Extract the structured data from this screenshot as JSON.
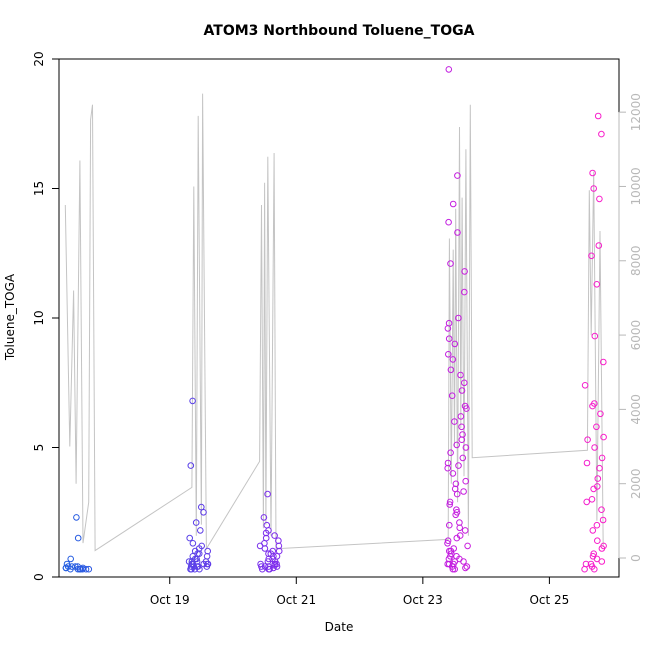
{
  "chart_data": {
    "type": "scatter",
    "title": "ATOM3 Northbound Toluene_TOGA",
    "xlabel": "Date",
    "ylabel": "Toluene_TOGA",
    "x_unit": "days since Oct 17 00:00",
    "xlim": [
      17.25,
      26.1
    ],
    "ylim": [
      0,
      20
    ],
    "x_ticks": [
      19,
      21,
      23,
      25
    ],
    "x_tick_labels": [
      "Oct 19",
      "Oct 21",
      "Oct 23",
      "Oct 25"
    ],
    "y_ticks": [
      0,
      5,
      10,
      15,
      20
    ],
    "y_tick_labels": [
      "0",
      "5",
      "10",
      "15",
      "20"
    ],
    "secondary_axis": {
      "label": "",
      "ylim": [
        0,
        13000
      ],
      "ticks": [
        0,
        2000,
        4000,
        6000,
        8000,
        10000,
        12000
      ],
      "tick_labels": [
        "0",
        "2000",
        "4000",
        "6000",
        "8000",
        "10000",
        "12000"
      ],
      "color": "#b8b8b8"
    },
    "colors": {
      "start": "#1f5fe0",
      "end": "#ff1fc8",
      "line": "#c4c4c4"
    },
    "series": [
      {
        "name": "Toluene_TOGA",
        "kind": "points",
        "clusters": [
          {
            "x": 17.55,
            "y": [
              0.4,
              0.3,
              0.5,
              0.7,
              2.3,
              1.5,
              0.35,
              0.3,
              0.3,
              0.4,
              0.4,
              0.3,
              0.3,
              0.35,
              0.3,
              0.3,
              0.35,
              0.4
            ]
          },
          {
            "x": 19.45,
            "y": [
              0.3,
              0.4,
              0.5,
              0.6,
              0.8,
              1.0,
              0.3,
              0.4,
              0.5,
              0.6,
              0.7,
              0.9,
              1.2,
              0.4,
              0.3,
              0.5,
              0.6,
              0.8,
              1.1,
              0.3,
              0.4,
              0.5,
              0.7,
              1.0,
              1.5,
              0.4,
              0.5,
              0.6,
              0.9,
              1.3,
              1.8,
              2.1,
              2.5,
              2.7,
              4.3,
              6.8
            ]
          },
          {
            "x": 20.58,
            "y": [
              0.3,
              0.4,
              0.5,
              0.6,
              0.8,
              1.0,
              1.2,
              1.5,
              1.8,
              0.3,
              0.4,
              0.5,
              0.7,
              0.9,
              1.1,
              1.3,
              1.6,
              0.3,
              0.4,
              0.6,
              0.8,
              1.0,
              1.4,
              0.4,
              0.5,
              0.7,
              0.9,
              1.2,
              1.7,
              2.0,
              2.3,
              3.2,
              0.35,
              0.45
            ]
          },
          {
            "x": 23.55,
            "y": [
              0.3,
              0.4,
              0.5,
              0.6,
              0.7,
              0.8,
              1.0,
              1.2,
              1.5,
              1.8,
              2.1,
              2.5,
              2.9,
              3.3,
              3.7,
              4.0,
              4.4,
              4.8,
              5.3,
              5.8,
              6.2,
              6.6,
              7.0,
              7.5,
              8.0,
              8.6,
              9.2,
              9.6,
              10.0,
              11.0,
              11.8,
              12.1,
              13.3,
              13.7,
              14.4,
              15.5,
              19.6,
              0.3,
              0.4,
              0.5,
              0.6,
              0.8,
              1.0,
              1.3,
              1.6,
              2.0,
              2.4,
              2.8,
              3.2,
              3.6,
              4.2,
              4.6,
              5.1,
              5.5,
              6.0,
              6.5,
              7.2,
              7.8,
              8.4,
              9.0,
              9.8,
              0.35,
              0.5,
              0.7,
              0.9,
              1.1,
              1.4,
              1.9,
              2.6,
              3.4,
              4.3,
              5.0
            ]
          },
          {
            "x": 25.7,
            "y": [
              0.3,
              0.4,
              0.5,
              0.6,
              0.7,
              0.9,
              1.1,
              1.4,
              1.8,
              2.2,
              2.6,
              3.0,
              3.4,
              3.8,
              4.2,
              4.6,
              5.0,
              5.4,
              5.8,
              6.3,
              6.6,
              7.4,
              8.3,
              9.3,
              11.3,
              12.4,
              12.8,
              14.6,
              15.0,
              15.6,
              17.1,
              17.8,
              0.3,
              0.5,
              0.8,
              1.2,
              2.0,
              2.9,
              3.5,
              4.4,
              5.3,
              6.7
            ]
          }
        ]
      },
      {
        "name": "secondary trace",
        "kind": "line",
        "axis": "secondary",
        "points": [
          [
            17.35,
            9500
          ],
          [
            17.42,
            3000
          ],
          [
            17.48,
            7200
          ],
          [
            17.52,
            2000
          ],
          [
            17.58,
            10700
          ],
          [
            17.63,
            400
          ],
          [
            17.72,
            1500
          ],
          [
            17.75,
            11800
          ],
          [
            17.78,
            12200
          ],
          [
            17.82,
            200
          ],
          [
            19.35,
            1900
          ],
          [
            19.38,
            10000
          ],
          [
            19.42,
            600
          ],
          [
            19.45,
            11900
          ],
          [
            19.5,
            900
          ],
          [
            19.52,
            12500
          ],
          [
            19.58,
            250
          ],
          [
            20.42,
            2600
          ],
          [
            20.45,
            9500
          ],
          [
            20.48,
            800
          ],
          [
            20.5,
            10100
          ],
          [
            20.52,
            900
          ],
          [
            20.55,
            10800
          ],
          [
            20.6,
            600
          ],
          [
            20.65,
            10900
          ],
          [
            20.68,
            250
          ],
          [
            23.4,
            500
          ],
          [
            23.42,
            8600
          ],
          [
            23.45,
            2000
          ],
          [
            23.48,
            8300
          ],
          [
            23.5,
            3000
          ],
          [
            23.52,
            9400
          ],
          [
            23.55,
            1500
          ],
          [
            23.58,
            11600
          ],
          [
            23.6,
            3500
          ],
          [
            23.62,
            9700
          ],
          [
            23.65,
            2200
          ],
          [
            23.68,
            11000
          ],
          [
            23.72,
            600
          ],
          [
            23.75,
            12200
          ],
          [
            23.78,
            2700
          ],
          [
            25.6,
            2900
          ],
          [
            25.63,
            9900
          ],
          [
            25.66,
            6000
          ],
          [
            25.7,
            10400
          ],
          [
            25.75,
            1000
          ],
          [
            25.8,
            8800
          ],
          [
            25.85,
            300
          ]
        ]
      }
    ]
  }
}
